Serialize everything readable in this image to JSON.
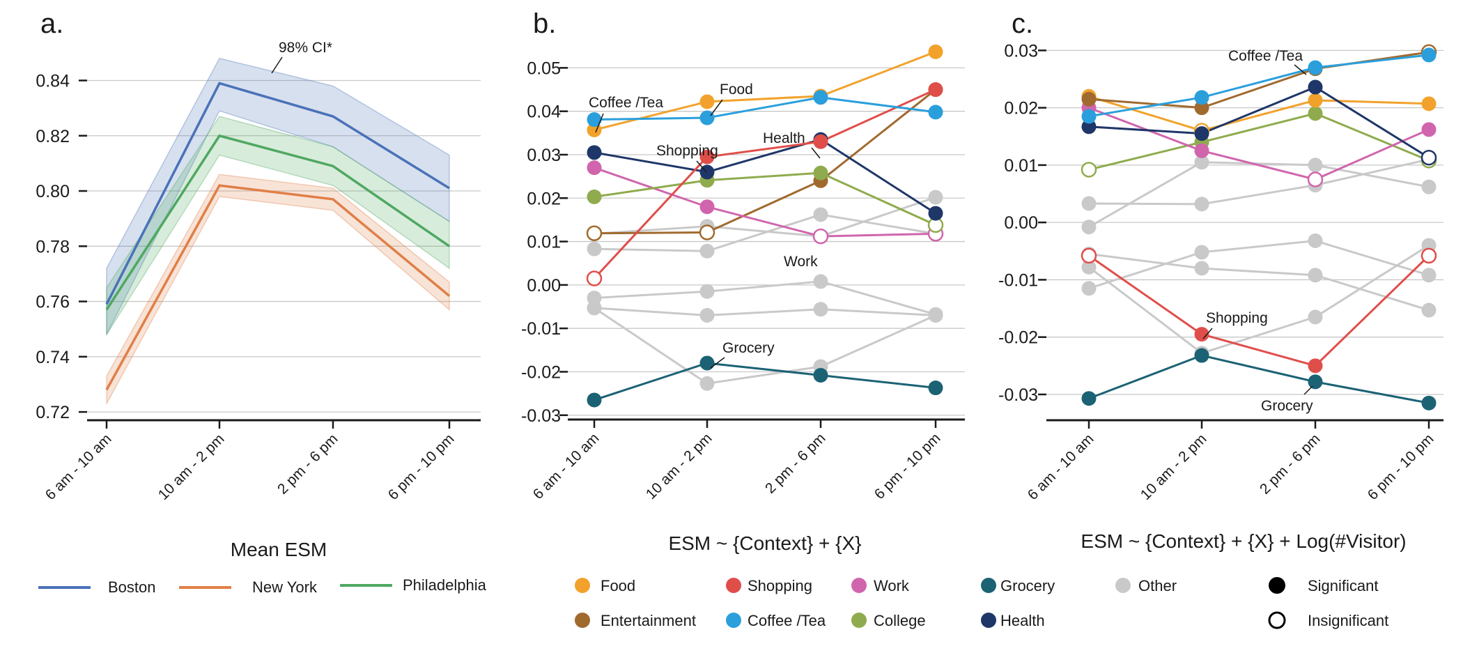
{
  "colors": {
    "Boston": "#4a72b8",
    "New York": "#e07f47",
    "Philadelphia": "#4fa861",
    "Food": "#f2a22c",
    "Shopping": "#e04e4a",
    "Work": "#d065ad",
    "Grocery": "#1b6274",
    "Other": "#c9c9c9",
    "Entertainment": "#a06a2e",
    "Coffee /Tea": "#2a9fdc",
    "College": "#8fab4d",
    "Health": "#1f3668"
  },
  "legend": {
    "cities": [
      "Boston",
      "New York",
      "Philadelphia"
    ],
    "contexts": [
      "Food",
      "Shopping",
      "Work",
      "Grocery",
      "Other",
      "Entertainment",
      "Coffee /Tea",
      "College",
      "Health"
    ],
    "significant": "Significant",
    "insignificant": "Insignificant"
  },
  "chart_data": [
    {
      "panel": "a.",
      "type": "line",
      "xlabel": "Mean ESM",
      "categories": [
        "6 am - 10 am",
        "10 am - 2 pm",
        "2 pm - 6 pm",
        "6 pm - 10 pm"
      ],
      "yticks": [
        "0.72",
        "0.74",
        "0.76",
        "0.78",
        "0.80",
        "0.82",
        "0.84"
      ],
      "ylim": [
        0.717,
        0.854
      ],
      "annotation": "98% CI*",
      "series": [
        {
          "name": "Boston",
          "values": [
            0.759,
            0.839,
            0.827,
            0.801
          ],
          "lower": [
            0.748,
            0.829,
            0.816,
            0.789
          ],
          "upper": [
            0.772,
            0.848,
            0.838,
            0.813
          ]
        },
        {
          "name": "New York",
          "values": [
            0.728,
            0.802,
            0.797,
            0.762
          ],
          "lower": [
            0.723,
            0.798,
            0.793,
            0.757
          ],
          "upper": [
            0.733,
            0.806,
            0.801,
            0.767
          ]
        },
        {
          "name": "Philadelphia",
          "values": [
            0.757,
            0.82,
            0.809,
            0.78
          ],
          "lower": [
            0.748,
            0.813,
            0.802,
            0.772
          ],
          "upper": [
            0.765,
            0.827,
            0.816,
            0.789
          ]
        }
      ]
    },
    {
      "panel": "b.",
      "type": "line",
      "xlabel": "ESM ~ {Context} + {X}",
      "categories": [
        "6 am - 10 am",
        "10 am - 2 pm",
        "2 pm - 6 pm",
        "6 pm - 10 pm"
      ],
      "yticks": [
        "-0.03",
        "-0.02",
        "-0.01",
        "0.00",
        "0.01",
        "0.02",
        "0.03",
        "0.04",
        "0.05"
      ],
      "ylim": [
        -0.031,
        0.056
      ],
      "labels": [
        "Coffee /Tea",
        "Food",
        "Shopping",
        "Health",
        "Work",
        "Grocery"
      ],
      "series": [
        {
          "name": "Other",
          "values": [
            0.0083,
            0.0078,
            0.0162,
            0.0118
          ],
          "significant": [
            true,
            true,
            true,
            true
          ]
        },
        {
          "name": "Other",
          "values": [
            0.0118,
            0.0135,
            0.0112,
            0.0202
          ],
          "significant": [
            true,
            true,
            true,
            true
          ]
        },
        {
          "name": "Other",
          "values": [
            -0.003,
            -0.0015,
            0.0008,
            -0.0068
          ],
          "significant": [
            true,
            true,
            true,
            true
          ]
        },
        {
          "name": "Other",
          "values": [
            -0.0053,
            -0.007,
            -0.0056,
            -0.007
          ],
          "significant": [
            true,
            true,
            true,
            true
          ]
        },
        {
          "name": "Other",
          "values": [
            -0.0053,
            -0.0227,
            -0.0188,
            -0.007
          ],
          "significant": [
            true,
            true,
            true,
            true
          ]
        },
        {
          "name": "Grocery",
          "values": [
            -0.0265,
            -0.018,
            -0.0208,
            -0.0237
          ],
          "significant": [
            true,
            true,
            true,
            true
          ]
        },
        {
          "name": "Entertainment",
          "values": [
            0.0119,
            0.0121,
            0.024,
            0.045
          ],
          "significant": [
            false,
            false,
            true,
            true
          ]
        },
        {
          "name": "Work",
          "values": [
            0.027,
            0.018,
            0.0112,
            0.0118
          ],
          "significant": [
            true,
            true,
            false,
            false
          ]
        },
        {
          "name": "College",
          "values": [
            0.0203,
            0.0241,
            0.0258,
            0.0138
          ],
          "significant": [
            true,
            true,
            true,
            false
          ]
        },
        {
          "name": "Health",
          "values": [
            0.0305,
            0.026,
            0.0335,
            0.0165
          ],
          "significant": [
            true,
            true,
            true,
            true
          ]
        },
        {
          "name": "Shopping",
          "values": [
            0.0015,
            0.0295,
            0.033,
            0.045
          ],
          "significant": [
            false,
            true,
            true,
            true
          ]
        },
        {
          "name": "Food",
          "values": [
            0.0357,
            0.0422,
            0.0435,
            0.0537
          ],
          "significant": [
            true,
            true,
            true,
            true
          ]
        },
        {
          "name": "Coffee /Tea",
          "values": [
            0.0381,
            0.0385,
            0.0432,
            0.0398
          ],
          "significant": [
            true,
            true,
            true,
            true
          ]
        }
      ]
    },
    {
      "panel": "c.",
      "type": "line",
      "xlabel": "ESM ~ {Context} + {X} + Log(#Visitor)",
      "categories": [
        "6 am - 10 am",
        "10 am - 2 pm",
        "2 pm - 6 pm",
        "6 pm - 10 pm"
      ],
      "yticks": [
        "-0.03",
        "-0.02",
        "-0.01",
        "0.00",
        "0.01",
        "0.02",
        "0.03"
      ],
      "ylim": [
        -0.0345,
        0.0315
      ],
      "labels": [
        "Coffee /Tea",
        "Shopping",
        "Grocery"
      ],
      "series": [
        {
          "name": "Other",
          "values": [
            0.0033,
            0.0032,
            0.0065,
            0.011
          ],
          "significant": [
            true,
            true,
            true,
            true
          ]
        },
        {
          "name": "Other",
          "values": [
            -0.0008,
            0.0105,
            0.01,
            0.0062
          ],
          "significant": [
            true,
            true,
            true,
            true
          ]
        },
        {
          "name": "Other",
          "values": [
            -0.0055,
            -0.008,
            -0.0092,
            -0.0153
          ],
          "significant": [
            true,
            true,
            true,
            true
          ]
        },
        {
          "name": "Other",
          "values": [
            -0.0115,
            -0.0052,
            -0.0032,
            -0.0092
          ],
          "significant": [
            true,
            true,
            true,
            true
          ]
        },
        {
          "name": "Other",
          "values": [
            -0.0078,
            -0.0228,
            -0.0165,
            -0.004
          ],
          "significant": [
            true,
            true,
            true,
            true
          ]
        },
        {
          "name": "Grocery",
          "values": [
            -0.0307,
            -0.0232,
            -0.0278,
            -0.0315
          ],
          "significant": [
            true,
            true,
            true,
            true
          ]
        },
        {
          "name": "Shopping",
          "values": [
            -0.0058,
            -0.0195,
            -0.025,
            -0.0058
          ],
          "significant": [
            false,
            true,
            true,
            false
          ]
        },
        {
          "name": "College",
          "values": [
            0.0092,
            0.014,
            0.019,
            0.0108
          ],
          "significant": [
            false,
            true,
            true,
            false
          ]
        },
        {
          "name": "Work",
          "values": [
            0.02,
            0.0125,
            0.0075,
            0.0162
          ],
          "significant": [
            true,
            true,
            false,
            true
          ]
        },
        {
          "name": "Food",
          "values": [
            0.022,
            0.016,
            0.0213,
            0.0207
          ],
          "significant": [
            true,
            false,
            true,
            true
          ]
        },
        {
          "name": "Entertainment",
          "values": [
            0.0215,
            0.02,
            0.0268,
            0.0297
          ],
          "significant": [
            true,
            true,
            true,
            false
          ]
        },
        {
          "name": "Health",
          "values": [
            0.0167,
            0.0155,
            0.0236,
            0.0113
          ],
          "significant": [
            true,
            true,
            true,
            false
          ]
        },
        {
          "name": "Coffee /Tea",
          "values": [
            0.0185,
            0.0218,
            0.027,
            0.0292
          ],
          "significant": [
            true,
            true,
            true,
            true
          ]
        }
      ]
    }
  ]
}
